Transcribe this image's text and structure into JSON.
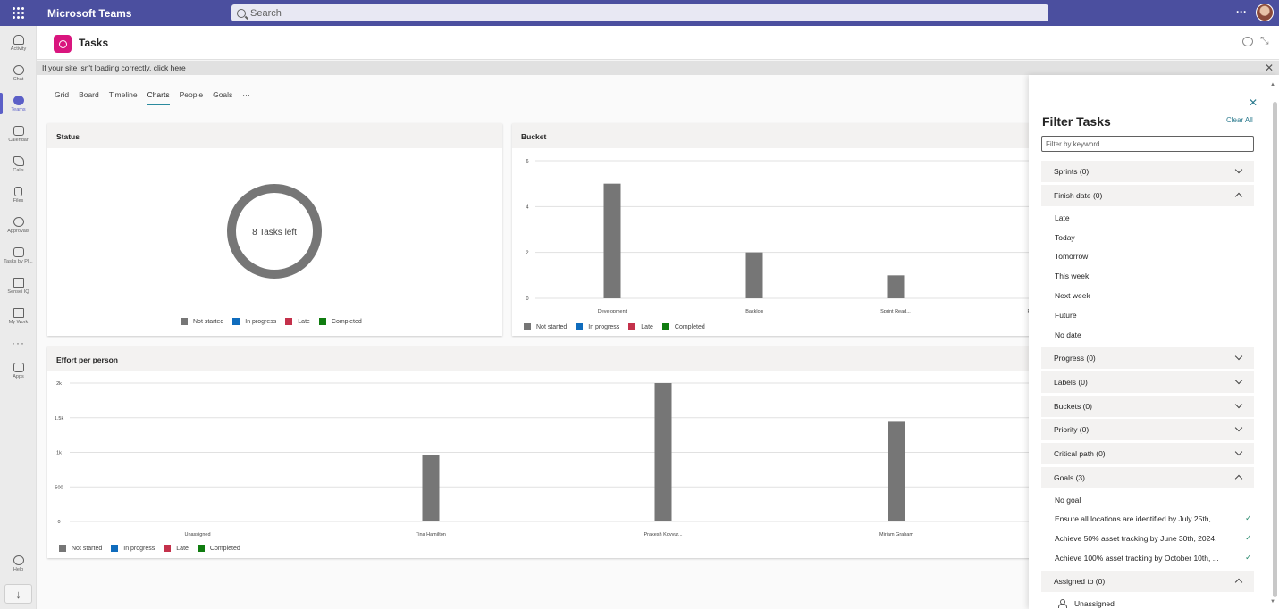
{
  "app": {
    "title": "Microsoft Teams",
    "search_placeholder": "Search",
    "more": "···"
  },
  "rail": {
    "items": [
      {
        "label": "Activity",
        "icon": "bell-icon"
      },
      {
        "label": "Chat",
        "icon": "chat-icon"
      },
      {
        "label": "Teams",
        "icon": "teams-icon"
      },
      {
        "label": "Calendar",
        "icon": "calendar-icon"
      },
      {
        "label": "Calls",
        "icon": "phone-icon"
      },
      {
        "label": "Files",
        "icon": "file-icon"
      },
      {
        "label": "Approvals",
        "icon": "approvals-icon"
      },
      {
        "label": "Tasks by Pl...",
        "icon": "tasks-icon"
      },
      {
        "label": "Sensei IQ",
        "icon": "iq-icon"
      },
      {
        "label": "My Work",
        "icon": "iq-icon"
      }
    ],
    "more": "···",
    "apps_label": "Apps",
    "help_label": "Help"
  },
  "header": {
    "title": "Tasks"
  },
  "notice": {
    "text": "If your site isn't loading correctly, click here"
  },
  "tabs": [
    "Grid",
    "Board",
    "Timeline",
    "Charts",
    "People",
    "Goals",
    "···"
  ],
  "legend": [
    "Not started",
    "In progress",
    "Late",
    "Completed"
  ],
  "colors": {
    "not_started": "#767676",
    "in_progress": "#0f6cbd",
    "late": "#c4314b",
    "completed": "#107c10",
    "accent": "#2b7a8e",
    "teams_purple": "#4b4f9f"
  },
  "status_card": {
    "title": "Status",
    "center_text": "8 Tasks left"
  },
  "bucket_card": {
    "title": "Bucket"
  },
  "effort_card": {
    "title": "Effort per person"
  },
  "chart_data": [
    {
      "type": "pie",
      "title": "Status",
      "center_label": "8 Tasks left",
      "categories": [
        "Not started",
        "In progress",
        "Late",
        "Completed"
      ],
      "values": [
        8,
        0,
        0,
        0
      ]
    },
    {
      "type": "bar",
      "title": "Bucket",
      "categories": [
        "Development",
        "Backlog",
        "Sprint Read...",
        "Re"
      ],
      "series": [
        {
          "name": "Not started",
          "values": [
            5,
            2,
            1,
            0
          ]
        },
        {
          "name": "In progress",
          "values": [
            0,
            0,
            0,
            0
          ]
        },
        {
          "name": "Late",
          "values": [
            0,
            0,
            0,
            0
          ]
        },
        {
          "name": "Completed",
          "values": [
            0,
            0,
            0,
            0
          ]
        }
      ],
      "yticks": [
        "0",
        "2",
        "4",
        "6"
      ],
      "ylim": [
        0,
        6
      ],
      "legend": "bottom-left"
    },
    {
      "type": "bar",
      "title": "Effort per person",
      "categories": [
        "Unassigned",
        "Tina Hamilton",
        "Prakesh Kovvur...",
        "Miriam Graham"
      ],
      "series": [
        {
          "name": "Not started",
          "values": [
            0,
            960,
            2000,
            1440
          ]
        },
        {
          "name": "In progress",
          "values": [
            0,
            0,
            0,
            0
          ]
        },
        {
          "name": "Late",
          "values": [
            0,
            0,
            0,
            0
          ]
        },
        {
          "name": "Completed",
          "values": [
            0,
            0,
            0,
            0
          ]
        }
      ],
      "yticks": [
        "0",
        "500",
        "1k",
        "1.5k",
        "2k"
      ],
      "ylim": [
        0,
        2000
      ],
      "legend": "bottom-left"
    }
  ],
  "filter": {
    "title": "Filter Tasks",
    "clear_all": "Clear All",
    "keyword_placeholder": "Filter by keyword",
    "sections": [
      {
        "label": "Sprints (0)",
        "expanded": false
      },
      {
        "label": "Finish date (0)",
        "expanded": true,
        "options": [
          "Late",
          "Today",
          "Tomorrow",
          "This week",
          "Next week",
          "Future",
          "No date"
        ]
      },
      {
        "label": "Progress (0)",
        "expanded": false
      },
      {
        "label": "Labels (0)",
        "expanded": false
      },
      {
        "label": "Buckets (0)",
        "expanded": false
      },
      {
        "label": "Priority (0)",
        "expanded": false
      },
      {
        "label": "Critical path (0)",
        "expanded": false
      },
      {
        "label": "Goals (3)",
        "expanded": true,
        "options": [
          "No goal",
          "Ensure all locations are identified by July 25th,...",
          "Achieve 50% asset tracking by June 30th, 2024.",
          "Achieve 100% asset tracking by October 10th, ..."
        ]
      },
      {
        "label": "Assigned to (0)",
        "expanded": true,
        "options": [
          "Unassigned"
        ]
      }
    ]
  }
}
